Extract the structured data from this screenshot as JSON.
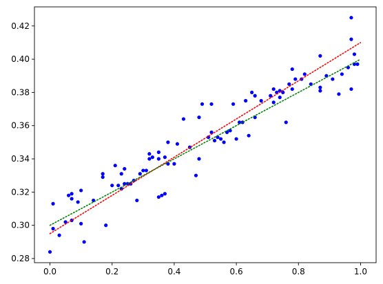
{
  "chart_data": {
    "type": "scatter",
    "title": "",
    "xlabel": "",
    "ylabel": "",
    "xlim": [
      -0.05,
      1.05
    ],
    "ylim": [
      0.2775,
      0.4315
    ],
    "grid": false,
    "legend": "none",
    "x_ticks": [
      {
        "value": 0.0,
        "label": "0.0"
      },
      {
        "value": 0.2,
        "label": "0.2"
      },
      {
        "value": 0.4,
        "label": "0.4"
      },
      {
        "value": 0.6,
        "label": "0.6"
      },
      {
        "value": 0.8,
        "label": "0.8"
      },
      {
        "value": 1.0,
        "label": "1.0"
      }
    ],
    "y_ticks": [
      {
        "value": 0.28,
        "label": "0.28"
      },
      {
        "value": 0.3,
        "label": "0.30"
      },
      {
        "value": 0.32,
        "label": "0.32"
      },
      {
        "value": 0.34,
        "label": "0.34"
      },
      {
        "value": 0.36,
        "label": "0.36"
      },
      {
        "value": 0.38,
        "label": "0.38"
      },
      {
        "value": 0.4,
        "label": "0.40"
      },
      {
        "value": 0.42,
        "label": "0.42"
      }
    ],
    "series": [
      {
        "kind": "scatter",
        "color": "#0000ff",
        "points": [
          [
            0.0,
            0.284
          ],
          [
            0.01,
            0.298
          ],
          [
            0.01,
            0.313
          ],
          [
            0.03,
            0.294
          ],
          [
            0.05,
            0.302
          ],
          [
            0.06,
            0.318
          ],
          [
            0.07,
            0.303
          ],
          [
            0.07,
            0.319
          ],
          [
            0.07,
            0.316
          ],
          [
            0.09,
            0.314
          ],
          [
            0.1,
            0.301
          ],
          [
            0.1,
            0.321
          ],
          [
            0.11,
            0.29
          ],
          [
            0.14,
            0.315
          ],
          [
            0.17,
            0.331
          ],
          [
            0.17,
            0.329
          ],
          [
            0.18,
            0.3
          ],
          [
            0.2,
            0.324
          ],
          [
            0.21,
            0.336
          ],
          [
            0.22,
            0.324
          ],
          [
            0.23,
            0.322
          ],
          [
            0.23,
            0.331
          ],
          [
            0.24,
            0.325
          ],
          [
            0.24,
            0.334
          ],
          [
            0.25,
            0.325
          ],
          [
            0.26,
            0.325
          ],
          [
            0.27,
            0.327
          ],
          [
            0.28,
            0.315
          ],
          [
            0.29,
            0.331
          ],
          [
            0.3,
            0.333
          ],
          [
            0.31,
            0.333
          ],
          [
            0.32,
            0.34
          ],
          [
            0.32,
            0.343
          ],
          [
            0.33,
            0.341
          ],
          [
            0.35,
            0.34
          ],
          [
            0.35,
            0.344
          ],
          [
            0.35,
            0.317
          ],
          [
            0.36,
            0.318
          ],
          [
            0.37,
            0.319
          ],
          [
            0.37,
            0.341
          ],
          [
            0.38,
            0.35
          ],
          [
            0.38,
            0.337
          ],
          [
            0.4,
            0.337
          ],
          [
            0.41,
            0.349
          ],
          [
            0.43,
            0.364
          ],
          [
            0.45,
            0.347
          ],
          [
            0.47,
            0.33
          ],
          [
            0.48,
            0.34
          ],
          [
            0.48,
            0.365
          ],
          [
            0.49,
            0.373
          ],
          [
            0.51,
            0.353
          ],
          [
            0.52,
            0.356
          ],
          [
            0.52,
            0.373
          ],
          [
            0.53,
            0.351
          ],
          [
            0.54,
            0.353
          ],
          [
            0.55,
            0.352
          ],
          [
            0.56,
            0.35
          ],
          [
            0.57,
            0.356
          ],
          [
            0.58,
            0.357
          ],
          [
            0.59,
            0.373
          ],
          [
            0.6,
            0.352
          ],
          [
            0.61,
            0.362
          ],
          [
            0.62,
            0.362
          ],
          [
            0.63,
            0.375
          ],
          [
            0.64,
            0.354
          ],
          [
            0.65,
            0.38
          ],
          [
            0.66,
            0.378
          ],
          [
            0.66,
            0.365
          ],
          [
            0.68,
            0.375
          ],
          [
            0.71,
            0.378
          ],
          [
            0.72,
            0.374
          ],
          [
            0.72,
            0.382
          ],
          [
            0.73,
            0.38
          ],
          [
            0.74,
            0.377
          ],
          [
            0.74,
            0.381
          ],
          [
            0.75,
            0.38
          ],
          [
            0.76,
            0.362
          ],
          [
            0.77,
            0.385
          ],
          [
            0.78,
            0.394
          ],
          [
            0.78,
            0.382
          ],
          [
            0.79,
            0.388
          ],
          [
            0.81,
            0.388
          ],
          [
            0.82,
            0.391
          ],
          [
            0.84,
            0.385
          ],
          [
            0.87,
            0.402
          ],
          [
            0.87,
            0.381
          ],
          [
            0.87,
            0.383
          ],
          [
            0.89,
            0.39
          ],
          [
            0.91,
            0.388
          ],
          [
            0.93,
            0.379
          ],
          [
            0.94,
            0.391
          ],
          [
            0.96,
            0.395
          ],
          [
            0.97,
            0.382
          ],
          [
            0.97,
            0.412
          ],
          [
            0.97,
            0.425
          ],
          [
            0.98,
            0.403
          ],
          [
            0.98,
            0.397
          ],
          [
            0.99,
            0.397
          ]
        ]
      },
      {
        "kind": "fit-line",
        "style": "dotted",
        "color": "#ff0000",
        "points": [
          [
            0.0,
            0.295
          ],
          [
            1.0,
            0.41
          ]
        ]
      },
      {
        "kind": "fit-line",
        "style": "dotted",
        "color": "#008000",
        "points": [
          [
            0.0,
            0.3
          ],
          [
            1.0,
            0.4
          ]
        ]
      }
    ]
  }
}
